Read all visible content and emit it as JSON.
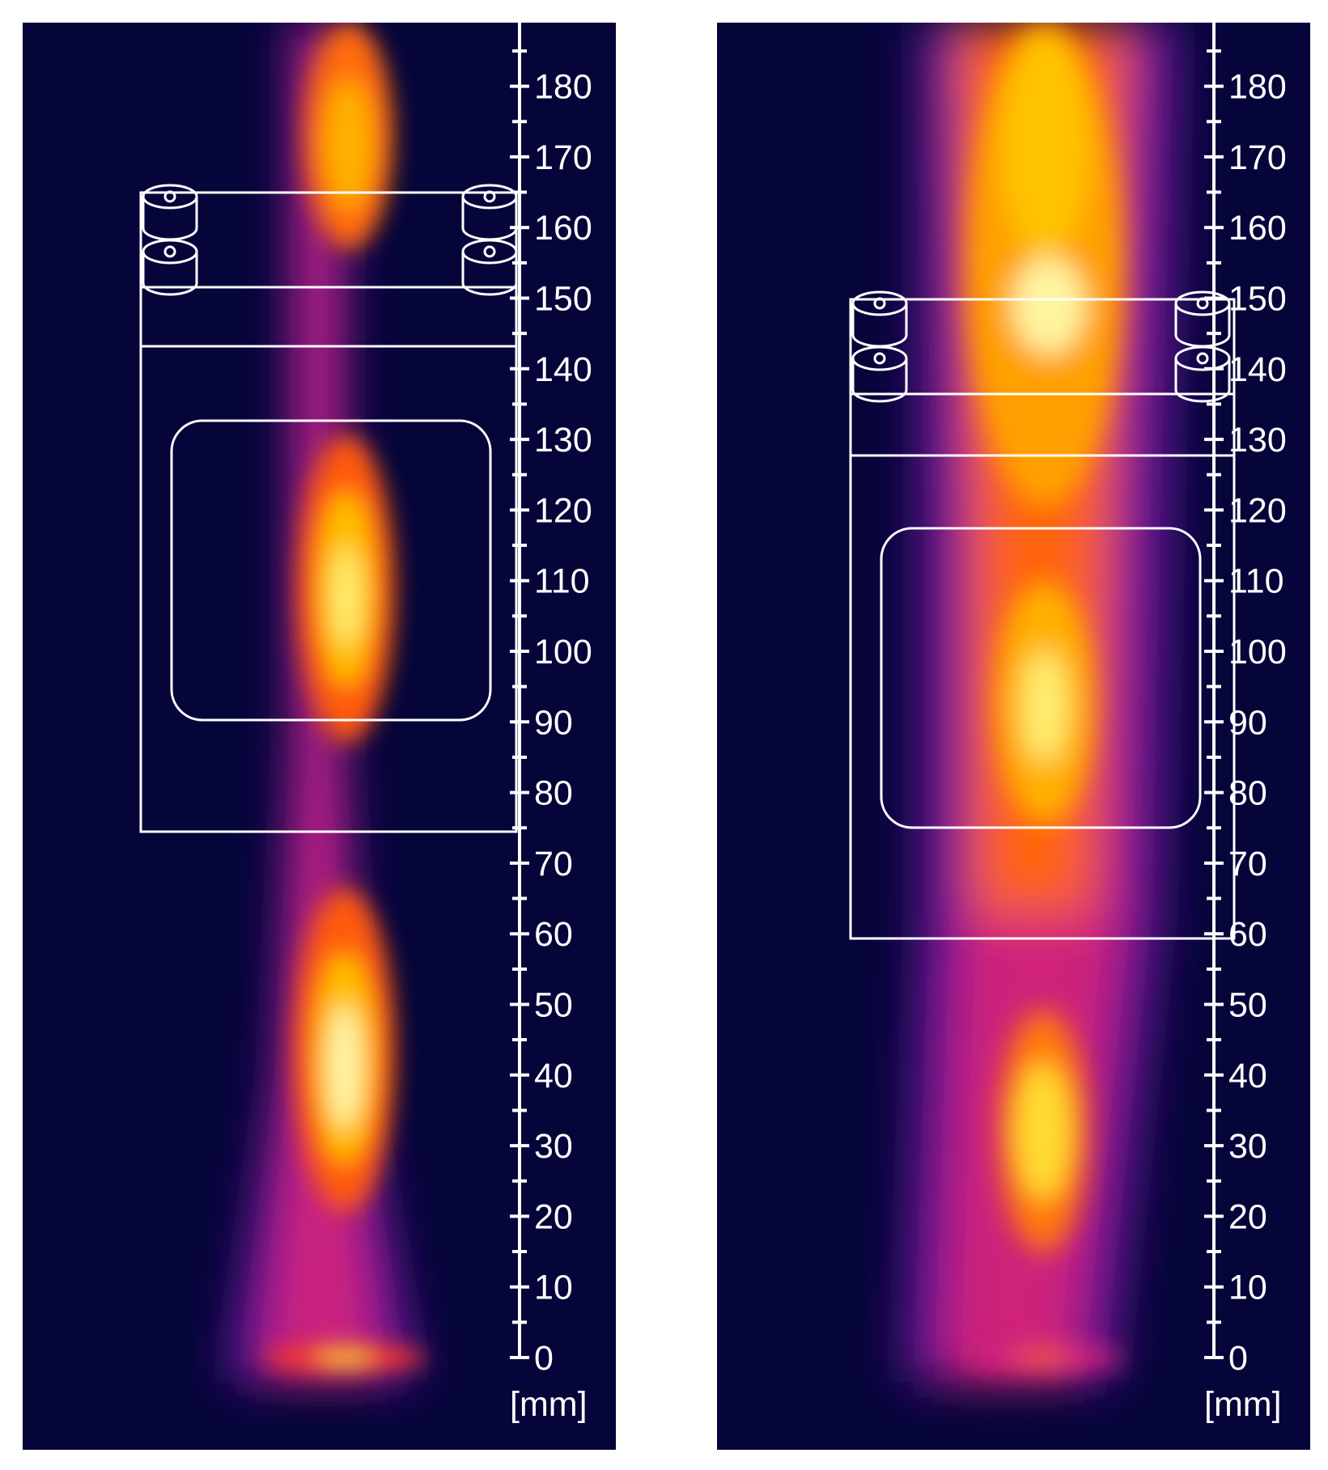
{
  "figure": {
    "panels": [
      {
        "id": "left",
        "scale_ticks": [
          "180",
          "170",
          "160",
          "150",
          "140",
          "130",
          "120",
          "110",
          "100",
          "90",
          "80",
          "70",
          "60",
          "50",
          "40",
          "30",
          "20",
          "10",
          "0"
        ],
        "unit": "[mm]"
      },
      {
        "id": "right",
        "scale_ticks": [
          "180",
          "170",
          "160",
          "150",
          "140",
          "130",
          "120",
          "110",
          "100",
          "90",
          "80",
          "70",
          "60",
          "50",
          "40",
          "30",
          "20",
          "10",
          "0"
        ],
        "unit": "[mm]"
      }
    ]
  },
  "colors": {
    "background": "#05053a",
    "overlay": "#ffffff",
    "plume_colormap": [
      "#1a0a6e",
      "#7a1aa8",
      "#d8207a",
      "#ff5a14",
      "#ffb000",
      "#fff37a"
    ]
  }
}
